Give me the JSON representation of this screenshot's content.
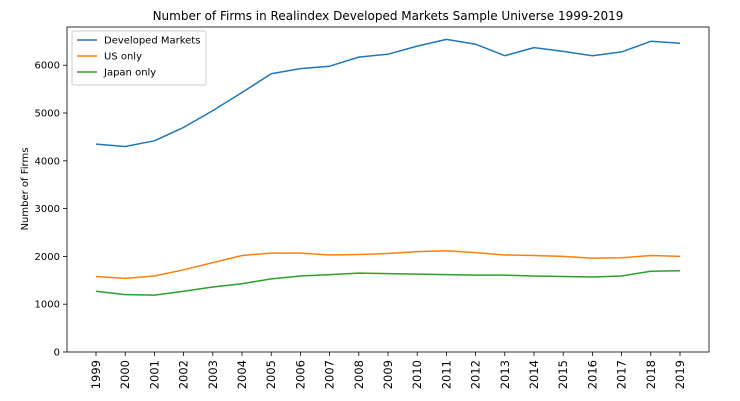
{
  "chart_data": {
    "type": "line",
    "title": "Number of Firms in Realindex Developed Markets Sample Universe 1999-2019",
    "xlabel": "",
    "ylabel": "Number of Firms",
    "x": [
      "1999",
      "2000",
      "2001",
      "2002",
      "2003",
      "2004",
      "2005",
      "2006",
      "2007",
      "2008",
      "2009",
      "2010",
      "2011",
      "2012",
      "2013",
      "2014",
      "2015",
      "2016",
      "2017",
      "2018",
      "2019"
    ],
    "ylim": [
      0,
      6800
    ],
    "yticks": [
      0,
      1000,
      2000,
      3000,
      4000,
      5000,
      6000
    ],
    "grid": false,
    "legend_position": "top-left",
    "series": [
      {
        "name": "Developed Markets",
        "color": "#1f77b4",
        "values": [
          4350,
          4300,
          4420,
          4700,
          5050,
          5430,
          5820,
          5930,
          5980,
          6170,
          6230,
          6400,
          6540,
          6440,
          6200,
          6370,
          6290,
          6200,
          6280,
          6500,
          6460
        ]
      },
      {
        "name": "US only",
        "color": "#ff7f0e",
        "values": [
          1580,
          1540,
          1590,
          1720,
          1870,
          2020,
          2070,
          2070,
          2030,
          2040,
          2060,
          2100,
          2120,
          2080,
          2030,
          2020,
          2000,
          1960,
          1970,
          2020,
          2000
        ]
      },
      {
        "name": "Japan only",
        "color": "#2ca02c",
        "values": [
          1270,
          1200,
          1190,
          1270,
          1360,
          1430,
          1530,
          1590,
          1620,
          1650,
          1640,
          1630,
          1620,
          1610,
          1610,
          1590,
          1580,
          1570,
          1590,
          1690,
          1700
        ]
      }
    ]
  }
}
